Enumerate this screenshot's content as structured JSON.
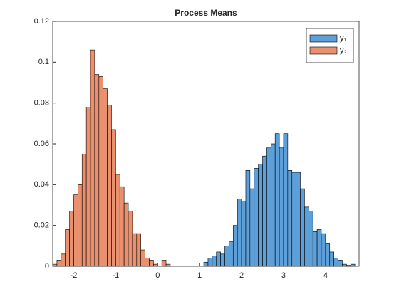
{
  "chart_data": {
    "type": "histogram",
    "title": "Process Means",
    "series": [
      {
        "name": "y₁",
        "color": "#5d9fd8",
        "bins": [
          1.1,
          1.2,
          1.3,
          1.4,
          1.5,
          1.6,
          1.7,
          1.8,
          1.9,
          2.0,
          2.1,
          2.2,
          2.3,
          2.4,
          2.5,
          2.6,
          2.7,
          2.8,
          2.9,
          3.0,
          3.1,
          3.2,
          3.3,
          3.4,
          3.5,
          3.6,
          3.7,
          3.8,
          3.9,
          4.0,
          4.1,
          4.2,
          4.3,
          4.4,
          4.5,
          4.6,
          4.7
        ],
        "values": [
          0.002,
          0.004,
          0.005,
          0.007,
          0.006,
          0.01,
          0.012,
          0.02,
          0.033,
          0.032,
          0.047,
          0.038,
          0.048,
          0.05,
          0.054,
          0.058,
          0.06,
          0.065,
          0.058,
          0.065,
          0.047,
          0.046,
          0.046,
          0.038,
          0.029,
          0.027,
          0.017,
          0.018,
          0.016,
          0.011,
          0.007,
          0.004,
          0.003,
          0.001,
          0.0005,
          0.001
        ]
      },
      {
        "name": "y₂",
        "color": "#e9916f",
        "bins": [
          -2.5,
          -2.4,
          -2.3,
          -2.2,
          -2.1,
          -2.0,
          -1.9,
          -1.8,
          -1.7,
          -1.6,
          -1.5,
          -1.4,
          -1.3,
          -1.2,
          -1.1,
          -1.0,
          -0.9,
          -0.8,
          -0.7,
          -0.6,
          -0.5,
          -0.4,
          -0.3,
          -0.2,
          -0.1,
          0.0,
          0.1,
          0.2,
          0.3
        ],
        "values": [
          0.001,
          0.003,
          0.006,
          0.018,
          0.027,
          0.035,
          0.04,
          0.055,
          0.078,
          0.106,
          0.094,
          0.093,
          0.087,
          0.079,
          0.067,
          0.045,
          0.039,
          0.031,
          0.027,
          0.016,
          0.016,
          0.008,
          0.004,
          0.003,
          0.001,
          0,
          0.003,
          0.001
        ]
      }
    ],
    "xlim": [
      -2.5,
      4.8
    ],
    "xticks": [
      -2,
      -1,
      0,
      1,
      2,
      3,
      4
    ],
    "ylim": [
      0,
      0.12
    ],
    "yticks": [
      0,
      0.02,
      0.04,
      0.06,
      0.08,
      0.1,
      0.12
    ],
    "legend": "northeast"
  }
}
